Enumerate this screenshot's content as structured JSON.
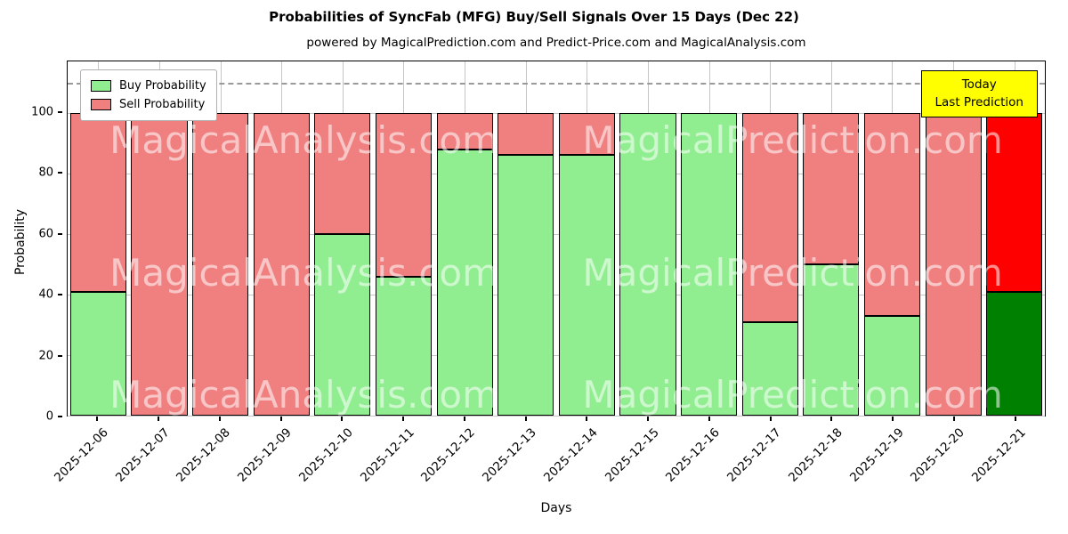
{
  "chart_data": {
    "type": "bar",
    "stacked": true,
    "title": "Probabilities of SyncFab (MFG) Buy/Sell Signals Over 15 Days (Dec 22)",
    "subtitle": "powered by MagicalPrediction.com and Predict-Price.com and MagicalAnalysis.com",
    "xlabel": "Days",
    "ylabel": "Probability",
    "ylim": [
      0,
      117
    ],
    "yticks": [
      0,
      20,
      40,
      60,
      80,
      100
    ],
    "grid": true,
    "hline": {
      "y": 110,
      "style": "dashed",
      "color": "#9a9a9a"
    },
    "categories": [
      "2025-12-06",
      "2025-12-07",
      "2025-12-08",
      "2025-12-09",
      "2025-12-10",
      "2025-12-11",
      "2025-12-12",
      "2025-12-13",
      "2025-12-14",
      "2025-12-15",
      "2025-12-16",
      "2025-12-17",
      "2025-12-18",
      "2025-12-19",
      "2025-12-20",
      "2025-12-21"
    ],
    "series": [
      {
        "name": "Buy Probability",
        "color": "#90EE90",
        "values": [
          41,
          0,
          0,
          0,
          60,
          46,
          88,
          86,
          86,
          100,
          100,
          31,
          50,
          33,
          0,
          41
        ]
      },
      {
        "name": "Sell Probability",
        "color": "#F08080",
        "values": [
          59,
          100,
          100,
          100,
          40,
          54,
          12,
          14,
          14,
          0,
          0,
          69,
          50,
          67,
          100,
          59
        ]
      }
    ],
    "today_index": 15,
    "today_colors": {
      "buy": "#008000",
      "sell": "#FF0000"
    },
    "legend_position": "upper-left",
    "annotation": {
      "lines": [
        "Today",
        "Last Prediction"
      ],
      "bg_color": "#FFFF00"
    },
    "watermarks": {
      "texts": [
        "MagicalAnalysis.com",
        "MagicalPrediction.com"
      ],
      "rows_top_pct": [
        16,
        53.5,
        88
      ]
    }
  }
}
